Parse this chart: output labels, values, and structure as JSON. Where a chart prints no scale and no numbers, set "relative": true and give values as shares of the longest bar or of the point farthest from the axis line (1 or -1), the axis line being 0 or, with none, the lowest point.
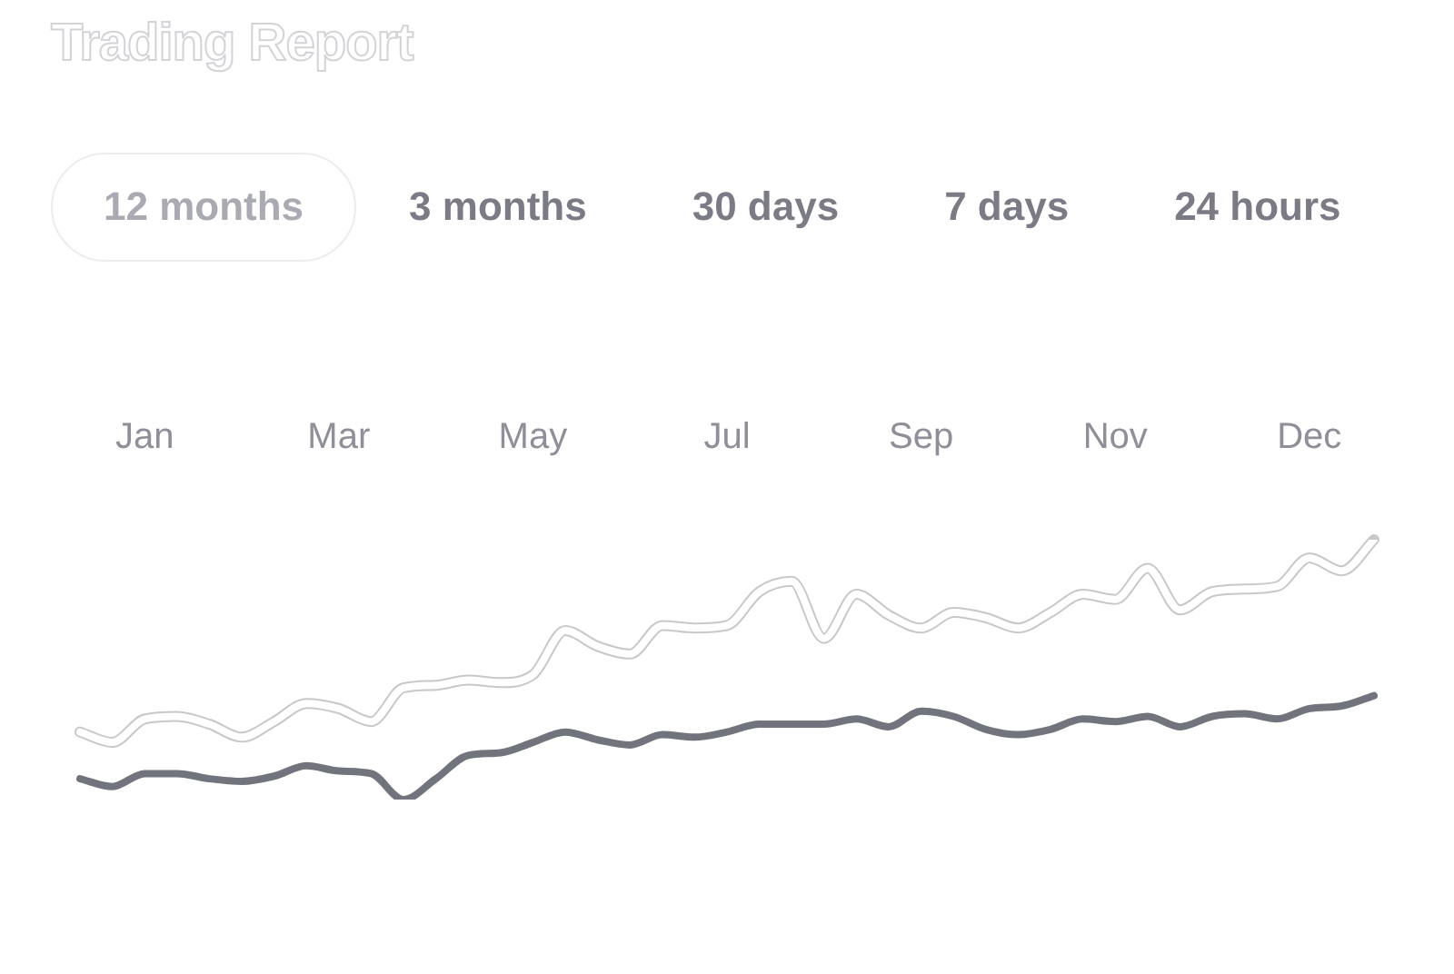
{
  "chart_data": {
    "type": "line",
    "title": "Trading Report",
    "annotations": [
      "12 months",
      "3 months",
      "30 days",
      "7 days",
      "24 hours"
    ],
    "relative": true,
    "categories": [
      null,
      null,
      "Jan",
      null,
      null,
      null,
      null,
      null,
      "Mar",
      null,
      null,
      null,
      null,
      null,
      "May",
      null,
      null,
      null,
      null,
      null,
      "Jul",
      null,
      null,
      null,
      null,
      null,
      "Sep",
      null,
      null,
      null,
      null,
      null,
      "Nov",
      null,
      null,
      null,
      null,
      null,
      "Dec",
      null,
      null
    ],
    "grid": false,
    "legend": false,
    "marker": "none",
    "line_style": "solid",
    "series": [
      {
        "color": "#ffffff",
        "values": [
          0.26,
          0.22,
          0.31,
          0.32,
          0.29,
          0.24,
          0.3,
          0.37,
          0.35,
          0.3,
          0.43,
          0.44,
          0.46,
          0.45,
          0.48,
          0.65,
          0.59,
          0.56,
          0.67,
          0.66,
          0.67,
          0.8,
          0.84,
          0.62,
          0.79,
          0.71,
          0.66,
          0.72,
          0.7,
          0.66,
          0.72,
          0.79,
          0.77,
          0.89,
          0.73,
          0.8,
          0.81,
          0.82,
          0.93,
          0.88,
          1
        ]
      },
      {
        "color": "#71737d",
        "values": [
          0.08,
          0.05,
          0.1,
          0.1,
          0.08,
          0.07,
          0.09,
          0.13,
          0.11,
          0.1,
          0,
          0.08,
          0.17,
          0.18,
          0.22,
          0.26,
          0.23,
          0.21,
          0.25,
          0.24,
          0.26,
          0.29,
          0.29,
          0.29,
          0.31,
          0.28,
          0.34,
          0.32,
          0.27,
          0.25,
          0.27,
          0.31,
          0.3,
          0.32,
          0.28,
          0.32,
          0.33,
          0.31,
          0.35,
          0.36,
          0.4
        ]
      }
    ]
  }
}
